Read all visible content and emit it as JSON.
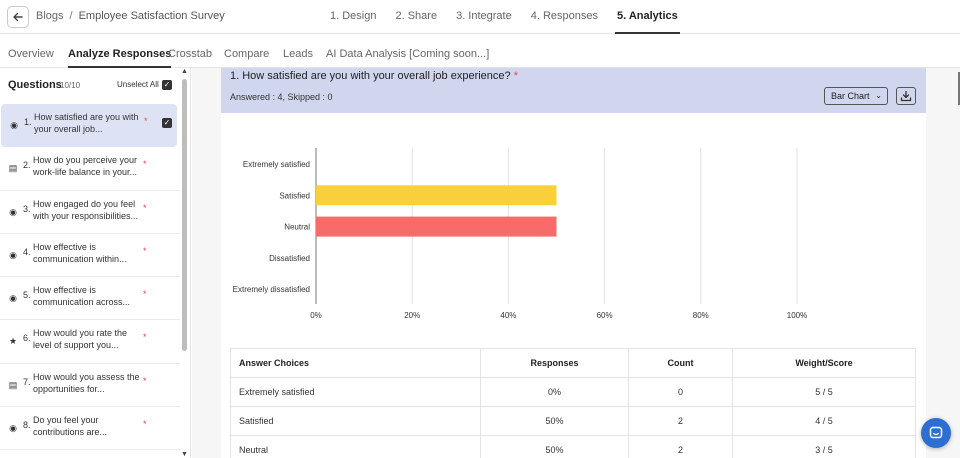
{
  "header": {
    "back_icon": "arrow-left-icon",
    "breadcrumb_root": "Blogs",
    "breadcrumb_sep": "/",
    "breadcrumb_current": "Employee Satisfaction Survey",
    "steps": [
      "1. Design",
      "2. Share",
      "3. Integrate",
      "4. Responses",
      "5. Analytics"
    ],
    "active_step": "5. Analytics"
  },
  "subtabs": {
    "items": [
      "Overview",
      "Analyze Responses",
      "Crosstab",
      "Compare",
      "Leads",
      "AI Data Analysis [Coming soon...]"
    ],
    "active": "Analyze Responses"
  },
  "sidebar": {
    "title": "Questions",
    "count": "10/10",
    "unselect_label": "Unselect All",
    "questions": [
      {
        "num": "1.",
        "text": "How satisfied are you with your overall job...",
        "icon": "radio-icon",
        "req": "*"
      },
      {
        "num": "2.",
        "text": "How do you perceive your work-life balance in your...",
        "icon": "matrix-icon",
        "req": "*"
      },
      {
        "num": "3.",
        "text": "How engaged do you feel with your responsibilities...",
        "icon": "radio-icon",
        "req": "*"
      },
      {
        "num": "4.",
        "text": "How effective is communication within...",
        "icon": "radio-icon",
        "req": "*"
      },
      {
        "num": "5.",
        "text": "How effective is communication across...",
        "icon": "radio-icon",
        "req": "*"
      },
      {
        "num": "6.",
        "text": "How would you rate the level of support you...",
        "icon": "star-icon",
        "req": "*"
      },
      {
        "num": "7.",
        "text": "How would you assess the opportunities for...",
        "icon": "matrix-icon",
        "req": "*"
      },
      {
        "num": "8.",
        "text": "Do you feel your contributions are...",
        "icon": "radio-icon",
        "req": "*"
      }
    ]
  },
  "question": {
    "title": "1. How satisfied are you with your overall job experience?",
    "req": "*",
    "stats": "Answered : 4, Skipped : 0",
    "chart_type_label": "Bar Chart",
    "download_icon": "download-icon"
  },
  "chart_data": {
    "type": "bar",
    "orientation": "horizontal",
    "categories": [
      "Extremely satisfied",
      "Satisfied",
      "Neutral",
      "Dissatisfied",
      "Extremely dissatisfied"
    ],
    "values": [
      0,
      50,
      50,
      0,
      0
    ],
    "xlim": [
      0,
      100
    ],
    "xticks": [
      "0%",
      "20%",
      "40%",
      "60%",
      "80%",
      "100%"
    ],
    "colors": [
      "#f9d03a",
      "#f9d03a",
      "#f96a6a",
      "#f96a6a",
      "#f96a6a"
    ],
    "grid": true,
    "title": "",
    "xlabel": "",
    "ylabel": ""
  },
  "table": {
    "headers": [
      "Answer Choices",
      "Responses",
      "Count",
      "Weight/Score"
    ],
    "rows": [
      [
        "Extremely satisfied",
        "0%",
        "0",
        "5 / 5"
      ],
      [
        "Satisfied",
        "50%",
        "2",
        "4 / 5"
      ],
      [
        "Neutral",
        "50%",
        "2",
        "3 / 5"
      ]
    ]
  },
  "chat_icon": "chat-icon"
}
